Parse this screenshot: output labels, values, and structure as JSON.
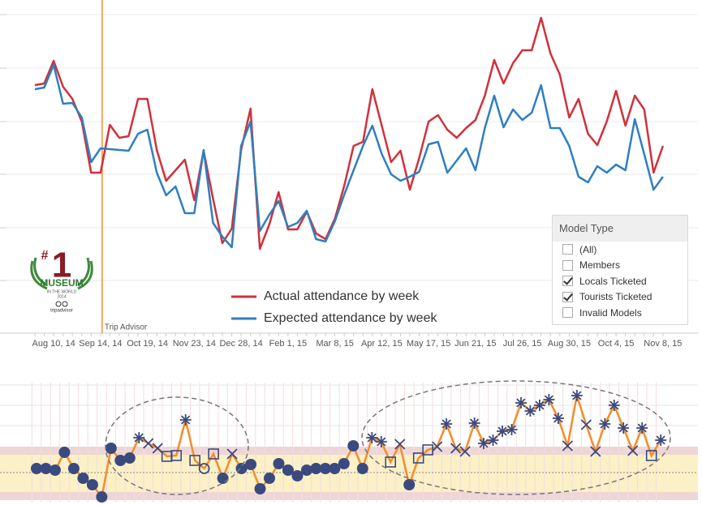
{
  "chart_data": [
    {
      "type": "line",
      "categories": [
        null,
        null,
        "Aug 10, 14",
        null,
        null,
        null,
        null,
        "Sep 14, 14",
        null,
        null,
        null,
        null,
        "Oct 19, 14",
        null,
        null,
        null,
        null,
        "Nov 23, 14",
        null,
        null,
        null,
        null,
        "Dec 28, 14",
        null,
        null,
        null,
        null,
        "Feb 1, 15",
        null,
        null,
        null,
        null,
        "Mar 8, 15",
        null,
        null,
        null,
        null,
        "Apr 12, 15",
        null,
        null,
        null,
        null,
        "May 17, 15",
        null,
        null,
        null,
        null,
        "Jun 21, 15",
        null,
        null,
        null,
        null,
        "Jul 26, 15",
        null,
        null,
        null,
        null,
        "Aug 30, 15",
        null,
        null,
        null,
        null,
        "Oct 4, 15",
        null,
        null,
        null,
        null,
        "Nov 8, 15"
      ],
      "series": [
        {
          "name": "Actual attendance by week",
          "color": "#d0313a",
          "values": [
            307,
            309,
            337,
            305,
            290,
            262,
            199,
            199,
            258,
            242,
            244,
            290,
            290,
            227,
            189,
            202,
            215,
            165,
            226,
            167,
            112,
            130,
            227,
            278,
            105,
            135,
            175,
            129,
            129,
            151,
            124,
            117,
            142,
            183,
            232,
            237,
            302,
            257,
            212,
            226,
            178,
            217,
            262,
            270,
            252,
            242,
            254,
            264,
            294,
            338,
            309,
            334,
            350,
            350,
            390,
            346,
            320,
            267,
            290,
            247,
            233,
            262,
            300,
            257,
            294,
            277,
            199,
            232
          ]
        },
        {
          "name": "Expected attendance by week",
          "color": "#2f7fc1",
          "values": [
            302,
            304,
            332,
            284,
            285,
            267,
            212,
            229,
            228,
            227,
            226,
            247,
            252,
            199,
            171,
            182,
            149,
            149,
            227,
            137,
            120,
            107,
            232,
            262,
            127,
            147,
            164,
            132,
            137,
            152,
            117,
            114,
            139,
            172,
            202,
            232,
            257,
            222,
            197,
            189,
            194,
            200,
            234,
            237,
            199,
            214,
            229,
            202,
            254,
            294,
            255,
            277,
            264,
            273,
            307,
            254,
            254,
            232,
            194,
            187,
            207,
            199,
            209,
            202,
            265,
            222,
            178,
            194
          ]
        }
      ],
      "ylim": [
        0,
        412
      ],
      "ygrid": [
        66,
        131,
        197,
        262,
        328,
        394
      ],
      "annotation": {
        "label": "Trip Advisor",
        "x_index": 7,
        "color": "#f28e2b"
      }
    },
    {
      "type": "control",
      "values": [
        42,
        42,
        40,
        62,
        42,
        30,
        22,
        7,
        67,
        52,
        55,
        80,
        73,
        67,
        57,
        58,
        102,
        52,
        42,
        60,
        30,
        60,
        42,
        47,
        17,
        30,
        48,
        40,
        33,
        40,
        42,
        42,
        42,
        48,
        70,
        42,
        80,
        75,
        50,
        72,
        22,
        55,
        65,
        69,
        97,
        67,
        63,
        98,
        73,
        77,
        88,
        90,
        123,
        113,
        120,
        127,
        104,
        70,
        132,
        96,
        63,
        97,
        120,
        92,
        64,
        92,
        58,
        77
      ],
      "markers": [
        "circle",
        "circle",
        "circle",
        "circle",
        "circle",
        "circle",
        "circle",
        "circle",
        "circle",
        "circle",
        "circle",
        "star",
        "x",
        "x",
        "square",
        "square",
        "star",
        "square",
        "open-circle",
        "square",
        "circle",
        "x",
        "circle",
        "circle",
        "circle",
        "circle",
        "circle",
        "circle",
        "circle",
        "circle",
        "circle",
        "circle",
        "circle",
        "circle",
        "circle",
        "circle",
        "star",
        "star",
        "square",
        "x",
        "circle",
        "square",
        "square",
        "x",
        "star",
        "x",
        "x",
        "star",
        "star",
        "star",
        "star",
        "star",
        "star",
        "star",
        "star",
        "star",
        "star",
        "x",
        "star",
        "x",
        "x",
        "star",
        "star",
        "star",
        "x",
        "star",
        "square",
        "star"
      ],
      "color": "#f28e2b",
      "marker_color": "#3b4a7e",
      "ylim": [
        0,
        148
      ],
      "outer_band": [
        3,
        69
      ],
      "inner_band": [
        13,
        59
      ],
      "center": 37
    }
  ],
  "logo": {
    "hash": "#",
    "rank": "1",
    "name": "MUSEUM",
    "subtitle": "IN THE WORLD",
    "year": "2014",
    "brand": "tripadvisor"
  },
  "filter": {
    "title": "Model Type",
    "options": [
      {
        "label": "(All)",
        "checked": false
      },
      {
        "label": "Members",
        "checked": false
      },
      {
        "label": "Locals Ticketed",
        "checked": true
      },
      {
        "label": "Tourists Ticketed",
        "checked": true
      },
      {
        "label": "Invalid Models",
        "checked": false
      }
    ]
  }
}
